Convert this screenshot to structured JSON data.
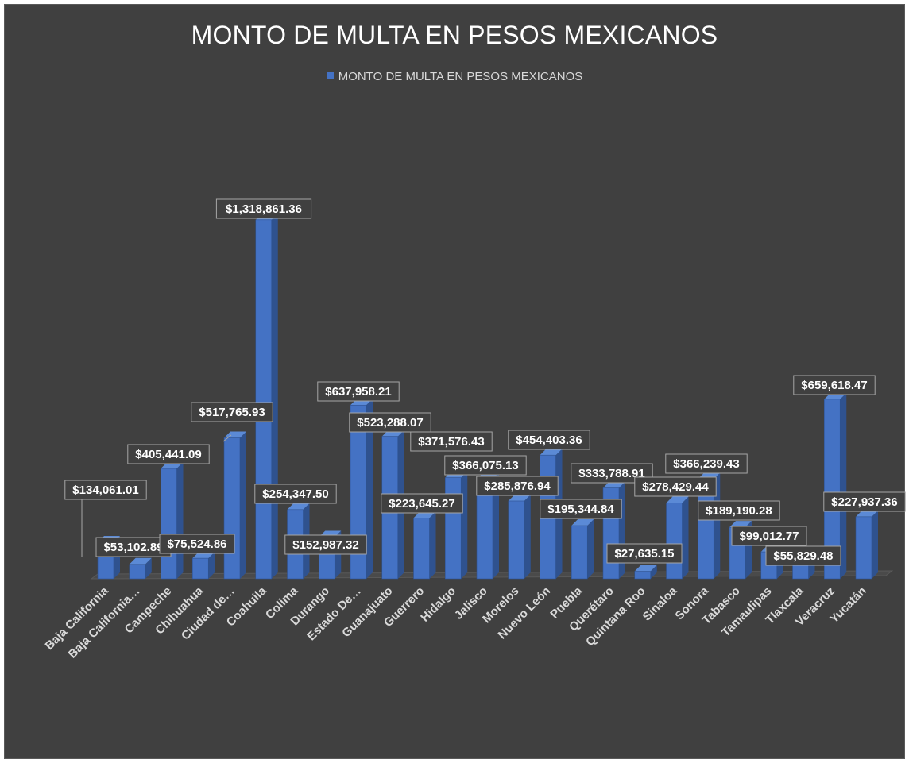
{
  "chart_data": {
    "type": "bar",
    "title": "MONTO DE MULTA EN PESOS MEXICANOS",
    "legend": "top",
    "grid": false,
    "ylim": [
      0,
      1400000
    ],
    "categories": [
      "Baja California",
      "Baja California…",
      "Campeche",
      "Chihuahua",
      "Ciudad de…",
      "Coahuila",
      "Colima",
      "Durango",
      "Estado De…",
      "Guanajuato",
      "Guerrero",
      "Hidalgo",
      "Jalisco",
      "Morelos",
      "Nuevo León",
      "Puebla",
      "Querétaro",
      "Quintana Roo",
      "Sinaloa",
      "Sonora",
      "Tabasco",
      "Tamaulipas",
      "Tlaxcala",
      "Veracruz",
      "Yucatán"
    ],
    "series": [
      {
        "name": "MONTO DE MULTA EN PESOS MEXICANOS",
        "values": [
          134061.01,
          53102.89,
          405441.09,
          75524.86,
          517765.93,
          1318861.36,
          254347.5,
          152987.32,
          637958.21,
          523288.07,
          223645.27,
          371576.43,
          366075.13,
          285876.94,
          454403.36,
          195344.84,
          333788.91,
          27635.15,
          278429.44,
          366239.43,
          189190.28,
          99012.77,
          55829.48,
          659618.47,
          227937.36
        ],
        "labels": [
          "$134,061.01",
          "$53,102.89",
          "$405,441.09",
          "$75,524.86",
          "$517,765.93",
          "$1,318,861.36",
          "$254,347.50",
          "$152,987.32",
          "$637,958.21",
          "$523,288.07",
          "$223,645.27",
          "$371,576.43",
          "$366,075.13",
          "$285,876.94",
          "$454,403.36",
          "$195,344.84",
          "$333,788.91",
          "$27,635.15",
          "$278,429.44",
          "$366,239.43",
          "$189,190.28",
          "$99,012.77",
          "$55,829.48",
          "$659,618.47",
          "$227,937.36"
        ]
      }
    ]
  },
  "colors": {
    "background": "#404040",
    "bar_front": "#4472c4",
    "bar_side": "#2f528f",
    "bar_top": "#5b8ad6",
    "label_border": "#a6a6a6",
    "text": "#ffffff",
    "axis_text": "#d9d9d9"
  }
}
